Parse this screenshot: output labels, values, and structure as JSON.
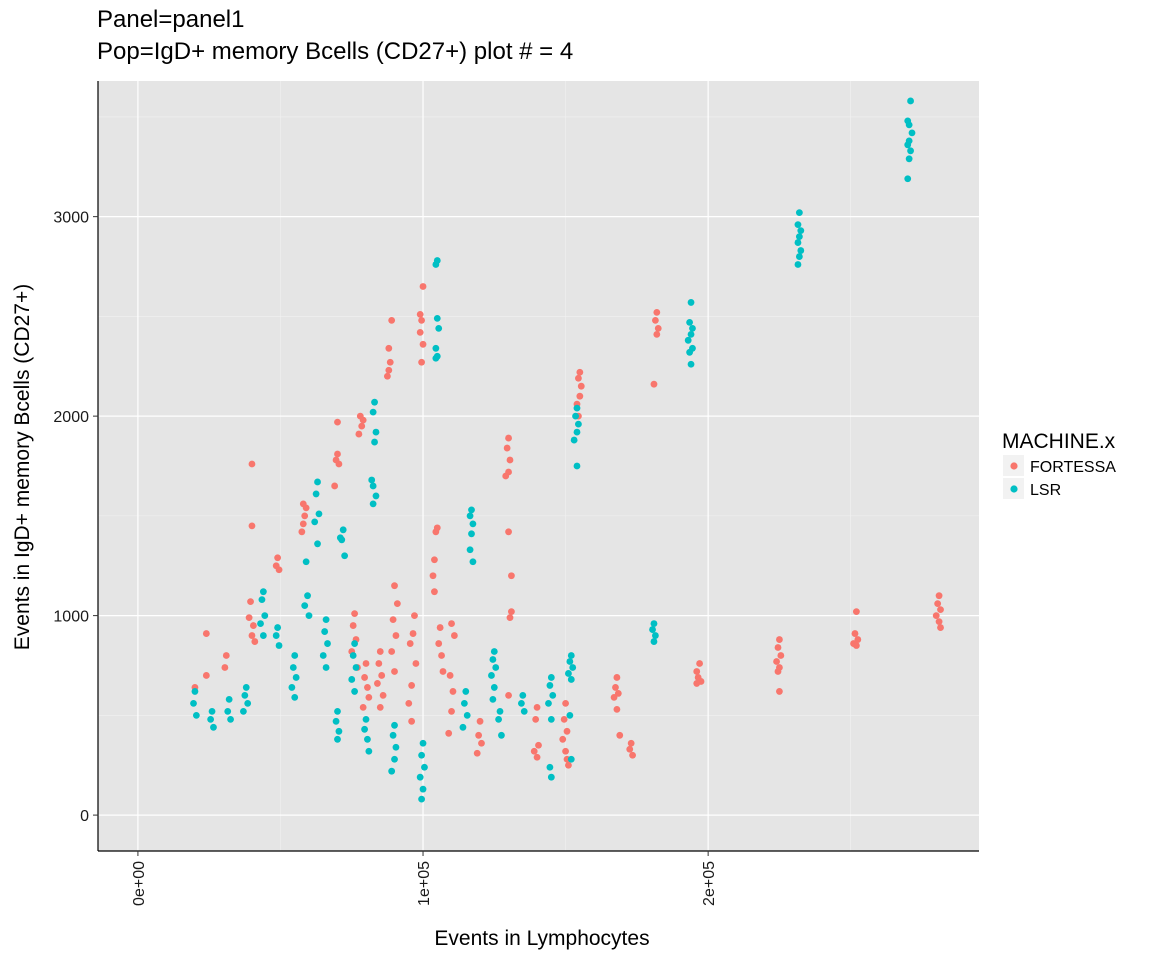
{
  "chart_data": {
    "type": "scatter",
    "title": "Panel=panel1",
    "subtitle": "Pop=IgD+ memory Bcells (CD27+) plot # = 4",
    "xlabel": "Events in Lymphocytes",
    "ylabel": "Events in IgD+ memory Bcells (CD27+)",
    "xlim": [
      -14000,
      295000
    ],
    "ylim": [
      -180,
      3680
    ],
    "x_ticks": [
      0,
      100000,
      200000
    ],
    "x_tick_labels": [
      "0e+00",
      "1e+05",
      "2e+05"
    ],
    "y_ticks": [
      0,
      1000,
      2000,
      3000
    ],
    "y_tick_labels": [
      "0",
      "1000",
      "2000",
      "3000"
    ],
    "grid": true,
    "legend_title": "MACHINE.x",
    "legend_position": "right",
    "series": [
      {
        "name": "FORTESSA",
        "color": "#F8766D",
        "points": [
          [
            100000,
            2650
          ],
          [
            99000,
            2510
          ],
          [
            99500,
            2480
          ],
          [
            99000,
            2420
          ],
          [
            100000,
            2360
          ],
          [
            99500,
            2270
          ],
          [
            89000,
            2480
          ],
          [
            88000,
            2340
          ],
          [
            88500,
            2270
          ],
          [
            87500,
            2200
          ],
          [
            88000,
            2230
          ],
          [
            78000,
            2000
          ],
          [
            78500,
            1950
          ],
          [
            77500,
            1910
          ],
          [
            79000,
            1980
          ],
          [
            70000,
            1970
          ],
          [
            70000,
            1810
          ],
          [
            69500,
            1780
          ],
          [
            70500,
            1760
          ],
          [
            69000,
            1650
          ],
          [
            58000,
            1560
          ],
          [
            58500,
            1500
          ],
          [
            57500,
            1420
          ],
          [
            58000,
            1460
          ],
          [
            59000,
            1540
          ],
          [
            49000,
            1290
          ],
          [
            49500,
            1230
          ],
          [
            48500,
            1250
          ],
          [
            40000,
            1760
          ],
          [
            40000,
            1450
          ],
          [
            39500,
            1070
          ],
          [
            39000,
            990
          ],
          [
            40500,
            950
          ],
          [
            40000,
            900
          ],
          [
            41000,
            870
          ],
          [
            31000,
            800
          ],
          [
            30500,
            740
          ],
          [
            24000,
            910
          ],
          [
            24000,
            700
          ],
          [
            20000,
            640
          ],
          [
            105000,
            1440
          ],
          [
            104500,
            1420
          ],
          [
            104000,
            1280
          ],
          [
            103500,
            1200
          ],
          [
            104000,
            1120
          ],
          [
            130000,
            1890
          ],
          [
            129500,
            1840
          ],
          [
            130500,
            1780
          ],
          [
            130000,
            1720
          ],
          [
            129000,
            1700
          ],
          [
            130000,
            1420
          ],
          [
            131000,
            1200
          ],
          [
            131000,
            1020
          ],
          [
            130500,
            990
          ],
          [
            130000,
            600
          ],
          [
            155000,
            2220
          ],
          [
            154500,
            2190
          ],
          [
            155500,
            2150
          ],
          [
            155000,
            2100
          ],
          [
            154000,
            2060
          ],
          [
            154500,
            2000
          ],
          [
            182000,
            2520
          ],
          [
            181500,
            2480
          ],
          [
            182500,
            2440
          ],
          [
            182000,
            2410
          ],
          [
            181000,
            2160
          ],
          [
            168000,
            690
          ],
          [
            167500,
            640
          ],
          [
            168500,
            610
          ],
          [
            167000,
            590
          ],
          [
            168000,
            530
          ],
          [
            169000,
            400
          ],
          [
            173000,
            360
          ],
          [
            172500,
            330
          ],
          [
            173500,
            300
          ],
          [
            197000,
            760
          ],
          [
            196000,
            720
          ],
          [
            196500,
            690
          ],
          [
            197500,
            670
          ],
          [
            196000,
            660
          ],
          [
            225000,
            880
          ],
          [
            224500,
            840
          ],
          [
            225500,
            800
          ],
          [
            224000,
            770
          ],
          [
            225000,
            740
          ],
          [
            224500,
            720
          ],
          [
            225000,
            620
          ],
          [
            252000,
            1020
          ],
          [
            251500,
            910
          ],
          [
            252500,
            880
          ],
          [
            251000,
            860
          ],
          [
            252000,
            850
          ],
          [
            281000,
            1100
          ],
          [
            280500,
            1060
          ],
          [
            281500,
            1030
          ],
          [
            280000,
            1000
          ],
          [
            281000,
            970
          ],
          [
            281500,
            940
          ],
          [
            150000,
            560
          ],
          [
            149500,
            480
          ],
          [
            150500,
            420
          ],
          [
            149000,
            380
          ],
          [
            150000,
            320
          ],
          [
            150500,
            280
          ],
          [
            151000,
            250
          ],
          [
            140000,
            540
          ],
          [
            139500,
            480
          ],
          [
            140500,
            350
          ],
          [
            139000,
            320
          ],
          [
            140000,
            290
          ],
          [
            120000,
            470
          ],
          [
            119500,
            400
          ],
          [
            120500,
            360
          ],
          [
            119000,
            310
          ],
          [
            110000,
            960
          ],
          [
            111000,
            900
          ],
          [
            109500,
            700
          ],
          [
            110500,
            620
          ],
          [
            110000,
            520
          ],
          [
            109000,
            410
          ],
          [
            97000,
            1000
          ],
          [
            96500,
            910
          ],
          [
            95500,
            860
          ],
          [
            97500,
            760
          ],
          [
            96000,
            650
          ],
          [
            95000,
            560
          ],
          [
            96000,
            470
          ],
          [
            90000,
            1150
          ],
          [
            91000,
            1060
          ],
          [
            89500,
            980
          ],
          [
            90500,
            900
          ],
          [
            89000,
            820
          ],
          [
            90000,
            720
          ],
          [
            85000,
            820
          ],
          [
            84500,
            760
          ],
          [
            85500,
            700
          ],
          [
            84000,
            660
          ],
          [
            86000,
            600
          ],
          [
            85000,
            540
          ],
          [
            106000,
            940
          ],
          [
            105500,
            860
          ],
          [
            106500,
            800
          ],
          [
            107000,
            720
          ],
          [
            80000,
            760
          ],
          [
            79500,
            690
          ],
          [
            80500,
            640
          ],
          [
            81000,
            590
          ],
          [
            79000,
            540
          ],
          [
            76000,
            1010
          ],
          [
            75500,
            950
          ],
          [
            76500,
            880
          ],
          [
            75000,
            820
          ],
          [
            77000,
            740
          ]
        ]
      },
      {
        "name": "LSR",
        "color": "#00BFC4",
        "points": [
          [
            271000,
            3580
          ],
          [
            270000,
            3480
          ],
          [
            270500,
            3460
          ],
          [
            271500,
            3420
          ],
          [
            270500,
            3380
          ],
          [
            270000,
            3360
          ],
          [
            271000,
            3330
          ],
          [
            270500,
            3290
          ],
          [
            270000,
            3190
          ],
          [
            232000,
            3020
          ],
          [
            231500,
            2960
          ],
          [
            232500,
            2930
          ],
          [
            232000,
            2900
          ],
          [
            231500,
            2870
          ],
          [
            232500,
            2830
          ],
          [
            232000,
            2800
          ],
          [
            231500,
            2760
          ],
          [
            194000,
            2570
          ],
          [
            193500,
            2470
          ],
          [
            194500,
            2440
          ],
          [
            194000,
            2410
          ],
          [
            193000,
            2380
          ],
          [
            194500,
            2340
          ],
          [
            193500,
            2320
          ],
          [
            194000,
            2260
          ],
          [
            154000,
            2040
          ],
          [
            153500,
            2000
          ],
          [
            154500,
            1960
          ],
          [
            154000,
            1920
          ],
          [
            153000,
            1880
          ],
          [
            154000,
            1750
          ],
          [
            117000,
            1530
          ],
          [
            116500,
            1500
          ],
          [
            117500,
            1460
          ],
          [
            117000,
            1410
          ],
          [
            116500,
            1330
          ],
          [
            117500,
            1270
          ],
          [
            105000,
            2780
          ],
          [
            104500,
            2760
          ],
          [
            105000,
            2490
          ],
          [
            105500,
            2440
          ],
          [
            104500,
            2340
          ],
          [
            105000,
            2300
          ],
          [
            104500,
            2290
          ],
          [
            83000,
            2070
          ],
          [
            82500,
            2020
          ],
          [
            83500,
            1920
          ],
          [
            83000,
            1870
          ],
          [
            82000,
            1680
          ],
          [
            82500,
            1650
          ],
          [
            83500,
            1600
          ],
          [
            82500,
            1560
          ],
          [
            72000,
            1430
          ],
          [
            71500,
            1380
          ],
          [
            72500,
            1300
          ],
          [
            71000,
            1390
          ],
          [
            63000,
            1670
          ],
          [
            62500,
            1610
          ],
          [
            63500,
            1510
          ],
          [
            62000,
            1470
          ],
          [
            63000,
            1360
          ],
          [
            59000,
            1270
          ],
          [
            59500,
            1100
          ],
          [
            58500,
            1050
          ],
          [
            60000,
            1000
          ],
          [
            44000,
            1120
          ],
          [
            43500,
            1080
          ],
          [
            44500,
            1000
          ],
          [
            43000,
            960
          ],
          [
            44000,
            900
          ],
          [
            49000,
            940
          ],
          [
            48500,
            900
          ],
          [
            49500,
            850
          ],
          [
            181000,
            960
          ],
          [
            180500,
            930
          ],
          [
            181500,
            900
          ],
          [
            181000,
            870
          ],
          [
            152000,
            800
          ],
          [
            151500,
            770
          ],
          [
            152500,
            740
          ],
          [
            151000,
            710
          ],
          [
            152000,
            680
          ],
          [
            151500,
            500
          ],
          [
            152000,
            280
          ],
          [
            135000,
            600
          ],
          [
            134500,
            560
          ],
          [
            135500,
            520
          ],
          [
            145000,
            690
          ],
          [
            144500,
            650
          ],
          [
            145500,
            600
          ],
          [
            144000,
            560
          ],
          [
            145000,
            480
          ],
          [
            144500,
            240
          ],
          [
            145000,
            190
          ],
          [
            125000,
            820
          ],
          [
            124500,
            780
          ],
          [
            125500,
            740
          ],
          [
            124000,
            700
          ],
          [
            125000,
            640
          ],
          [
            124500,
            580
          ],
          [
            127000,
            520
          ],
          [
            126500,
            480
          ],
          [
            127500,
            400
          ],
          [
            115000,
            620
          ],
          [
            114500,
            560
          ],
          [
            115500,
            500
          ],
          [
            114000,
            440
          ],
          [
            100000,
            360
          ],
          [
            99500,
            300
          ],
          [
            100500,
            240
          ],
          [
            99000,
            190
          ],
          [
            100000,
            130
          ],
          [
            99500,
            80
          ],
          [
            90000,
            450
          ],
          [
            89500,
            400
          ],
          [
            90500,
            340
          ],
          [
            90000,
            280
          ],
          [
            89000,
            220
          ],
          [
            80000,
            480
          ],
          [
            79500,
            430
          ],
          [
            80500,
            380
          ],
          [
            81000,
            320
          ],
          [
            76000,
            860
          ],
          [
            75500,
            800
          ],
          [
            76500,
            740
          ],
          [
            75000,
            680
          ],
          [
            76000,
            620
          ],
          [
            66000,
            980
          ],
          [
            65500,
            920
          ],
          [
            66500,
            860
          ],
          [
            65000,
            800
          ],
          [
            66000,
            740
          ],
          [
            70000,
            520
          ],
          [
            69500,
            470
          ],
          [
            70500,
            420
          ],
          [
            70000,
            380
          ],
          [
            55000,
            800
          ],
          [
            54500,
            740
          ],
          [
            55500,
            690
          ],
          [
            54000,
            640
          ],
          [
            55000,
            590
          ],
          [
            38000,
            640
          ],
          [
            37500,
            600
          ],
          [
            38500,
            560
          ],
          [
            37000,
            520
          ],
          [
            32000,
            580
          ],
          [
            31500,
            520
          ],
          [
            32500,
            480
          ],
          [
            26000,
            520
          ],
          [
            25500,
            480
          ],
          [
            26500,
            440
          ],
          [
            20000,
            620
          ],
          [
            19500,
            560
          ],
          [
            20500,
            500
          ]
        ]
      }
    ]
  }
}
